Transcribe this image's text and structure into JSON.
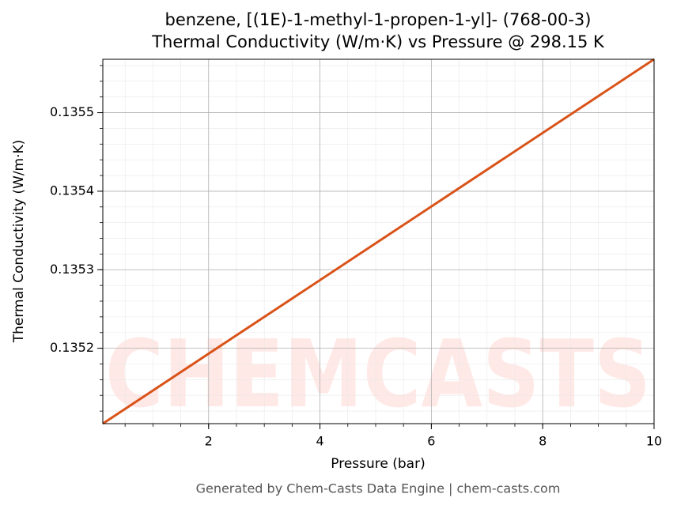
{
  "chart_data": {
    "type": "line",
    "title": [
      "benzene, [(1E)-1-methyl-1-propen-1-yl]- (768-00-3)",
      "Thermal Conductivity (W/m·K) vs Pressure @ 298.15 K"
    ],
    "x_label": "Pressure (bar)",
    "y_label": "Thermal Conductivity (W/m·K)",
    "x": [
      0.1,
      10
    ],
    "series": [
      {
        "name": "Thermal Conductivity",
        "color": "#d95319",
        "values": [
          0.135104,
          0.135568
        ]
      }
    ],
    "xlim": [
      0.1,
      10
    ],
    "xticks": [
      2,
      4,
      6,
      8,
      10
    ],
    "ylim": [
      0.135104,
      0.135568
    ],
    "yticks": [
      0.1352,
      0.1353,
      0.1354,
      0.1355
    ],
    "grid": true,
    "watermark": "CHEMCASTS",
    "footer": "Generated by Chem-Casts Data Engine | chem-casts.com"
  }
}
